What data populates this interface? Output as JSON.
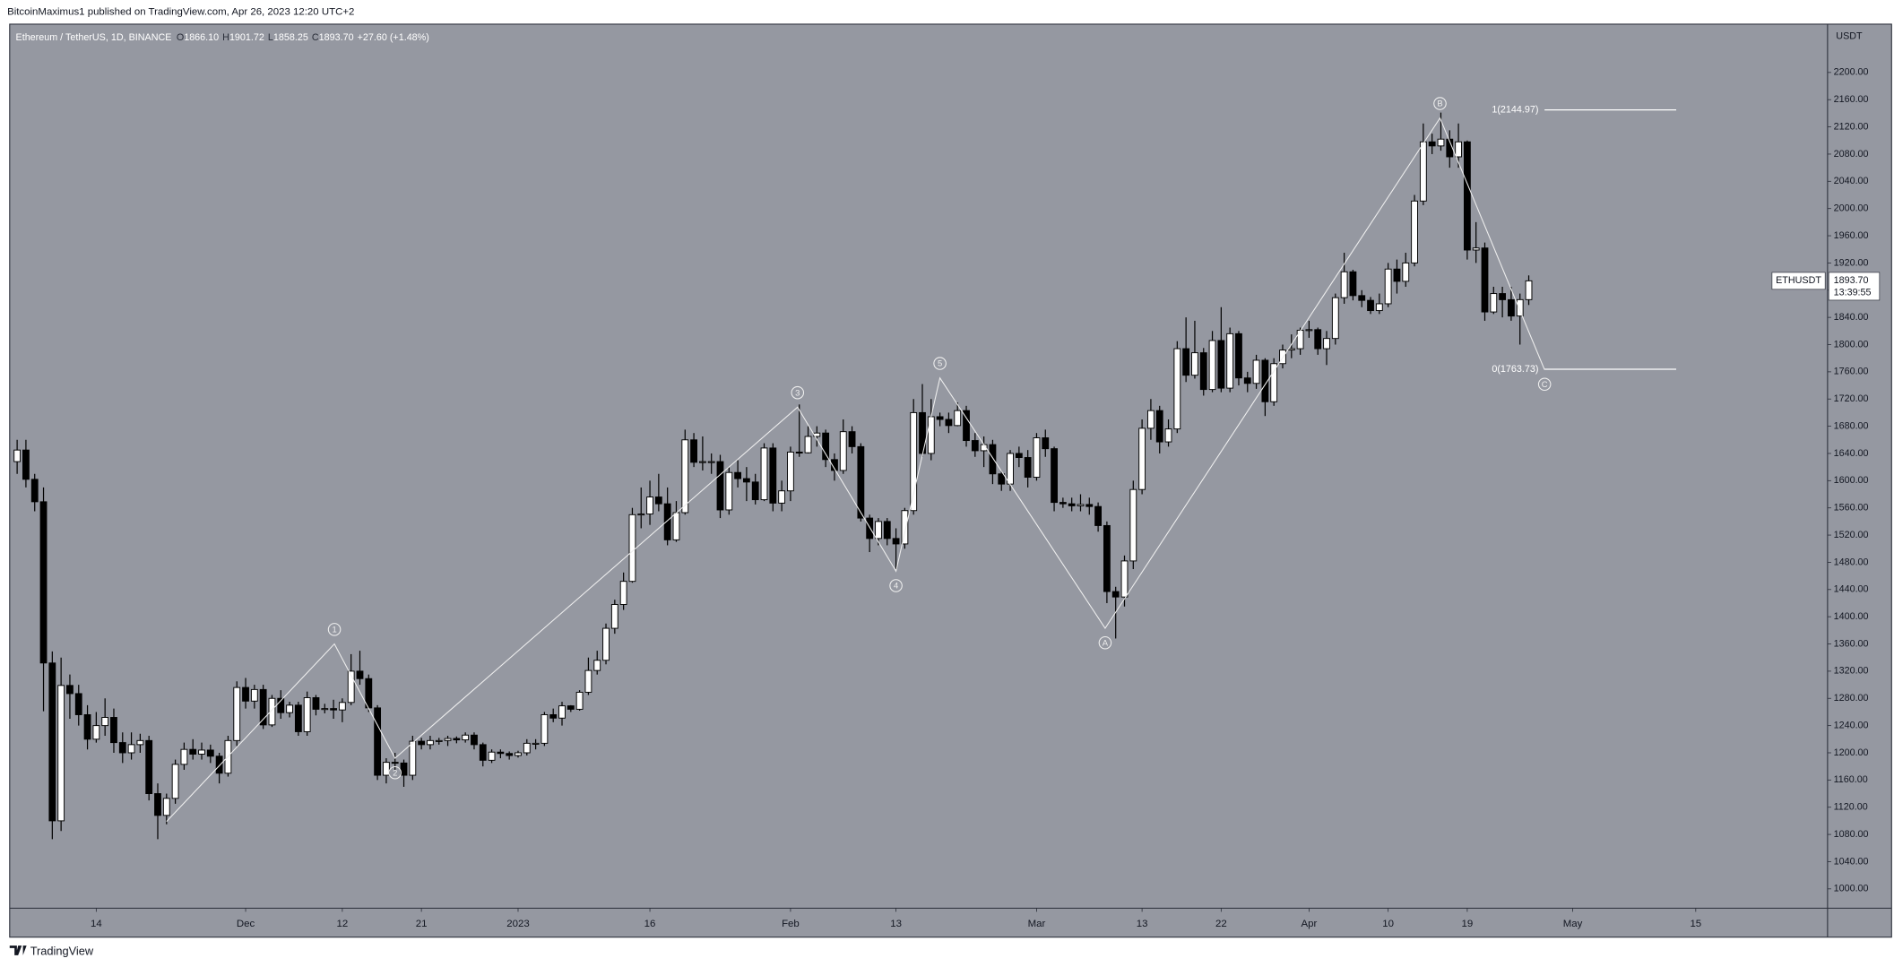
{
  "header": {
    "text": "BitcoinMaximus1 published on TradingView.com, Apr 26, 2023 12:20 UTC+2"
  },
  "footer": {
    "brand": "TradingView"
  },
  "chart_data": {
    "type": "candlestick",
    "symbol": "Ethereum / TetherUS, 1D, BINANCE",
    "ohlc_legend": [
      {
        "key": "O",
        "value": "1866.10"
      },
      {
        "key": "H",
        "value": "1901.72"
      },
      {
        "key": "L",
        "value": "1858.25"
      },
      {
        "key": "C",
        "value": "1893.70"
      }
    ],
    "change": "+27.60 (+1.48%)",
    "axis_unit": "USDT",
    "up_color": "#ffffff",
    "down_color": "#000000",
    "wick_color": "#000000",
    "open": [
      1628,
      1645,
      1602,
      1569,
      1332,
      1100,
      1299,
      1287,
      1256,
      1220,
      1240,
      1252,
      1215,
      1200,
      1212,
      1218,
      1140,
      1108,
      1133,
      1183,
      1205,
      1198,
      1204,
      1195,
      1170,
      1218,
      1296,
      1276,
      1293,
      1241,
      1280,
      1259,
      1270,
      1231,
      1281,
      1264,
      1265,
      1263,
      1274,
      1320,
      1309,
      1266,
      1167,
      1186,
      1185,
      1167,
      1217,
      1212,
      1218,
      1218,
      1221,
      1219,
      1226,
      1212,
      1189,
      1201,
      1199,
      1196,
      1200,
      1214,
      1214,
      1256,
      1251,
      1269,
      1264,
      1289,
      1321,
      1336,
      1383,
      1418,
      1452,
      1550,
      1551,
      1576,
      1566,
      1513,
      1553,
      1660,
      1627,
      1628,
      1628,
      1557,
      1612,
      1603,
      1598,
      1572,
      1648,
      1567,
      1585,
      1642,
      1641,
      1665,
      1670,
      1631,
      1615,
      1672,
      1650,
      1545,
      1515,
      1540,
      1515,
      1507,
      1556,
      1700,
      1640,
      1694,
      1690,
      1681,
      1703,
      1659,
      1644,
      1653,
      1610,
      1595,
      1640,
      1634,
      1605,
      1663,
      1647,
      1568,
      1566,
      1563,
      1565,
      1562,
      1534,
      1437,
      1429,
      1482,
      1587,
      1677,
      1703,
      1657,
      1676,
      1794,
      1755,
      1788,
      1734,
      1806,
      1736,
      1816,
      1751,
      1743,
      1777,
      1716,
      1772,
      1792,
      1794,
      1821,
      1822,
      1794,
      1809,
      1869,
      1907,
      1872,
      1865,
      1850,
      1860,
      1911,
      1893,
      1920,
      2011,
      2098,
      2092,
      2102,
      2076,
      2098,
      1939,
      1942,
      1848,
      1875,
      1866,
      1842,
      1866.1
    ],
    "high": [
      1660,
      1660,
      1610,
      1590,
      1349,
      1340,
      1315,
      1300,
      1270,
      1260,
      1280,
      1265,
      1230,
      1230,
      1228,
      1225,
      1155,
      1140,
      1190,
      1215,
      1220,
      1215,
      1212,
      1200,
      1225,
      1305,
      1310,
      1300,
      1300,
      1285,
      1292,
      1275,
      1275,
      1290,
      1285,
      1272,
      1278,
      1280,
      1345,
      1350,
      1315,
      1270,
      1192,
      1200,
      1190,
      1225,
      1222,
      1225,
      1222,
      1225,
      1224,
      1230,
      1230,
      1215,
      1205,
      1205,
      1202,
      1203,
      1220,
      1220,
      1260,
      1265,
      1275,
      1270,
      1292,
      1340,
      1350,
      1390,
      1425,
      1465,
      1560,
      1590,
      1600,
      1610,
      1590,
      1570,
      1675,
      1670,
      1665,
      1640,
      1638,
      1620,
      1630,
      1620,
      1610,
      1655,
      1655,
      1600,
      1650,
      1712,
      1680,
      1680,
      1675,
      1640,
      1690,
      1680,
      1655,
      1550,
      1545,
      1545,
      1530,
      1560,
      1720,
      1742,
      1720,
      1700,
      1700,
      1715,
      1710,
      1670,
      1665,
      1660,
      1615,
      1645,
      1650,
      1645,
      1670,
      1675,
      1650,
      1575,
      1575,
      1580,
      1575,
      1568,
      1540,
      1444,
      1490,
      1600,
      1690,
      1720,
      1710,
      1690,
      1805,
      1840,
      1835,
      1795,
      1820,
      1855,
      1825,
      1820,
      1760,
      1785,
      1780,
      1780,
      1800,
      1815,
      1825,
      1835,
      1825,
      1820,
      1875,
      1935,
      1910,
      1880,
      1870,
      1875,
      1920,
      1925,
      1935,
      2020,
      2125,
      2110,
      2141,
      2115,
      2125,
      2100,
      1980,
      1950,
      1885,
      1885,
      1885,
      1875,
      1901.72
    ],
    "low": [
      1610,
      1590,
      1555,
      1261,
      1073,
      1085,
      1250,
      1240,
      1205,
      1215,
      1225,
      1200,
      1185,
      1190,
      1200,
      1130,
      1073,
      1095,
      1125,
      1175,
      1190,
      1190,
      1185,
      1155,
      1165,
      1210,
      1265,
      1265,
      1235,
      1238,
      1250,
      1252,
      1225,
      1225,
      1255,
      1258,
      1250,
      1245,
      1270,
      1300,
      1260,
      1160,
      1155,
      1175,
      1150,
      1160,
      1205,
      1205,
      1212,
      1210,
      1214,
      1215,
      1205,
      1180,
      1185,
      1192,
      1190,
      1193,
      1196,
      1205,
      1210,
      1245,
      1240,
      1260,
      1262,
      1285,
      1315,
      1330,
      1375,
      1410,
      1450,
      1530,
      1535,
      1555,
      1505,
      1510,
      1550,
      1620,
      1615,
      1610,
      1545,
      1550,
      1590,
      1570,
      1565,
      1570,
      1555,
      1555,
      1570,
      1635,
      1640,
      1650,
      1620,
      1600,
      1610,
      1640,
      1540,
      1495,
      1505,
      1505,
      1470,
      1500,
      1550,
      1635,
      1630,
      1680,
      1670,
      1680,
      1650,
      1635,
      1620,
      1595,
      1585,
      1585,
      1620,
      1590,
      1600,
      1635,
      1555,
      1560,
      1555,
      1555,
      1550,
      1525,
      1420,
      1368,
      1415,
      1470,
      1580,
      1660,
      1640,
      1650,
      1670,
      1745,
      1750,
      1725,
      1730,
      1730,
      1730,
      1740,
      1730,
      1735,
      1695,
      1710,
      1765,
      1780,
      1785,
      1810,
      1785,
      1770,
      1800,
      1860,
      1865,
      1855,
      1845,
      1845,
      1855,
      1875,
      1885,
      1915,
      2005,
      2080,
      2085,
      2060,
      2060,
      1925,
      1920,
      1835,
      1845,
      1840,
      1835,
      1800,
      1858.25
    ],
    "close": [
      1645,
      1602,
      1569,
      1332,
      1100,
      1299,
      1287,
      1256,
      1220,
      1240,
      1252,
      1215,
      1200,
      1212,
      1218,
      1140,
      1108,
      1133,
      1183,
      1205,
      1198,
      1204,
      1195,
      1170,
      1218,
      1296,
      1276,
      1293,
      1241,
      1280,
      1259,
      1270,
      1231,
      1281,
      1264,
      1265,
      1263,
      1274,
      1320,
      1309,
      1266,
      1167,
      1186,
      1185,
      1167,
      1217,
      1212,
      1218,
      1218,
      1221,
      1219,
      1226,
      1212,
      1189,
      1201,
      1199,
      1196,
      1200,
      1214,
      1214,
      1256,
      1251,
      1269,
      1264,
      1289,
      1321,
      1336,
      1383,
      1418,
      1452,
      1550,
      1551,
      1576,
      1566,
      1513,
      1553,
      1660,
      1627,
      1628,
      1628,
      1557,
      1612,
      1603,
      1598,
      1572,
      1648,
      1567,
      1585,
      1642,
      1641,
      1665,
      1670,
      1631,
      1615,
      1672,
      1650,
      1545,
      1515,
      1540,
      1515,
      1507,
      1556,
      1700,
      1640,
      1694,
      1690,
      1681,
      1703,
      1659,
      1644,
      1653,
      1610,
      1595,
      1640,
      1634,
      1605,
      1663,
      1647,
      1568,
      1566,
      1563,
      1565,
      1562,
      1534,
      1437,
      1429,
      1482,
      1587,
      1677,
      1703,
      1657,
      1676,
      1794,
      1755,
      1788,
      1734,
      1806,
      1736,
      1816,
      1751,
      1743,
      1777,
      1716,
      1772,
      1792,
      1794,
      1821,
      1822,
      1794,
      1809,
      1869,
      1907,
      1872,
      1865,
      1850,
      1860,
      1911,
      1893,
      1920,
      2011,
      2098,
      2092,
      2102,
      2076,
      2098,
      1939,
      1942,
      1848,
      1875,
      1866,
      1842,
      1866.1,
      1893.7
    ],
    "xlim": [
      -0.85,
      206
    ],
    "xticks": [
      {
        "value": 9,
        "label": "14"
      },
      {
        "value": 26,
        "label": "Dec"
      },
      {
        "value": 37,
        "label": "12"
      },
      {
        "value": 46,
        "label": "21"
      },
      {
        "value": 57,
        "label": "2023"
      },
      {
        "value": 72,
        "label": "16"
      },
      {
        "value": 88,
        "label": "Feb"
      },
      {
        "value": 100,
        "label": "13"
      },
      {
        "value": 116,
        "label": "Mar"
      },
      {
        "value": 128,
        "label": "13"
      },
      {
        "value": 137,
        "label": "22"
      },
      {
        "value": 147,
        "label": "Apr"
      },
      {
        "value": 156,
        "label": "10"
      },
      {
        "value": 165,
        "label": "19"
      },
      {
        "value": 177,
        "label": "May"
      },
      {
        "value": 191,
        "label": "15"
      }
    ],
    "ylim": [
      971.6,
      2271
    ],
    "yticks": [
      {
        "value": 1000,
        "label": "1000.00"
      },
      {
        "value": 1040,
        "label": "1040.00"
      },
      {
        "value": 1080,
        "label": "1080.00"
      },
      {
        "value": 1120,
        "label": "1120.00"
      },
      {
        "value": 1160,
        "label": "1160.00"
      },
      {
        "value": 1200,
        "label": "1200.00"
      },
      {
        "value": 1240,
        "label": "1240.00"
      },
      {
        "value": 1280,
        "label": "1280.00"
      },
      {
        "value": 1320,
        "label": "1320.00"
      },
      {
        "value": 1360,
        "label": "1360.00"
      },
      {
        "value": 1400,
        "label": "1400.00"
      },
      {
        "value": 1440,
        "label": "1440.00"
      },
      {
        "value": 1480,
        "label": "1480.00"
      },
      {
        "value": 1520,
        "label": "1520.00"
      },
      {
        "value": 1560,
        "label": "1560.00"
      },
      {
        "value": 1600,
        "label": "1600.00"
      },
      {
        "value": 1640,
        "label": "1640.00"
      },
      {
        "value": 1680,
        "label": "1680.00"
      },
      {
        "value": 1720,
        "label": "1720.00"
      },
      {
        "value": 1760,
        "label": "1760.00"
      },
      {
        "value": 1800,
        "label": "1800.00"
      },
      {
        "value": 1840,
        "label": "1840.00"
      },
      {
        "value": 1880,
        "label": "1880.00"
      },
      {
        "value": 1920,
        "label": "1920.00"
      },
      {
        "value": 1960,
        "label": "1960.00"
      },
      {
        "value": 2000,
        "label": "2000.00"
      },
      {
        "value": 2040,
        "label": "2040.00"
      },
      {
        "value": 2080,
        "label": "2080.00"
      },
      {
        "value": 2120,
        "label": "2120.00"
      },
      {
        "value": 2160,
        "label": "2160.00"
      },
      {
        "value": 2200,
        "label": "2200.00"
      }
    ],
    "grid": false,
    "wave_color": "#eeeeee",
    "waves": [
      {
        "label": null,
        "x": 17,
        "y": 1099,
        "label_position": "below"
      },
      {
        "label": "1",
        "x": 36.1,
        "y": 1360,
        "label_position": "above"
      },
      {
        "label": "2",
        "x": 43,
        "y": 1192,
        "label_position": "below"
      },
      {
        "label": "3",
        "x": 88.8,
        "y": 1708,
        "label_position": "above"
      },
      {
        "label": "4",
        "x": 100,
        "y": 1467,
        "label_position": "below"
      },
      {
        "label": "5",
        "x": 105,
        "y": 1751,
        "label_position": "above"
      },
      {
        "label": "A",
        "x": 123.8,
        "y": 1383,
        "label_position": "below"
      },
      {
        "label": "B",
        "x": 161.9,
        "y": 2133,
        "label_position": "above"
      },
      {
        "label": "C",
        "x": 173.8,
        "y": 1763,
        "label_position": "below"
      }
    ],
    "fib_levels": [
      {
        "label": "1(2144.97)",
        "value": 2144.97
      },
      {
        "label": "0(1763.73)",
        "value": 1763.73
      }
    ],
    "price_tag": {
      "symbol": "ETHUSDT",
      "price": "1893.70",
      "countdown": "13:39:55"
    }
  }
}
